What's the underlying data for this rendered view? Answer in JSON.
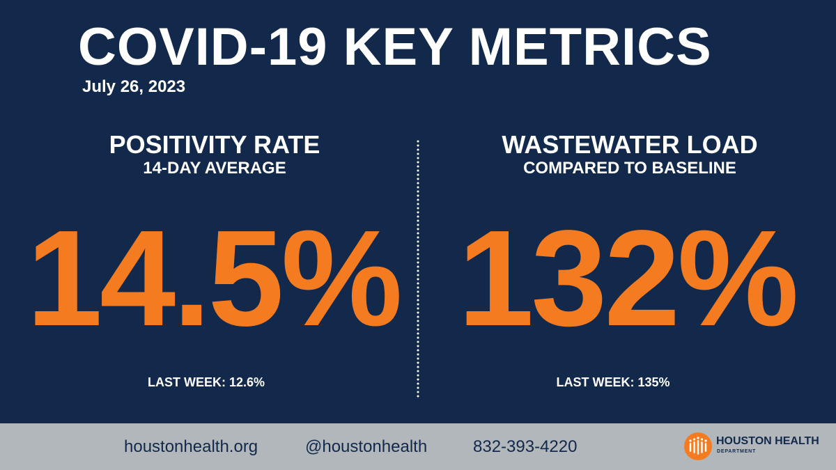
{
  "header": {
    "title": "COVID-19 KEY METRICS",
    "date": "July 26, 2023"
  },
  "metrics": [
    {
      "heading": "POSITIVITY RATE",
      "subheading": "14-DAY AVERAGE",
      "value": "14.5%",
      "last_week": "LAST WEEK: 12.6%"
    },
    {
      "heading": "WASTEWATER LOAD",
      "subheading": "COMPARED TO BASELINE",
      "value": "132%",
      "last_week": "LAST WEEK: 135%"
    }
  ],
  "footer": {
    "website": "houstonhealth.org",
    "social": "@houstonhealth",
    "phone": "832-393-4220",
    "logo_name": "HOUSTON HEALTH",
    "logo_sub": "DEPARTMENT"
  },
  "colors": {
    "background": "#13294b",
    "accent": "#f47b20",
    "footer": "#b1b7ba"
  },
  "icons": {
    "logo": "houston-health-logo-icon"
  }
}
